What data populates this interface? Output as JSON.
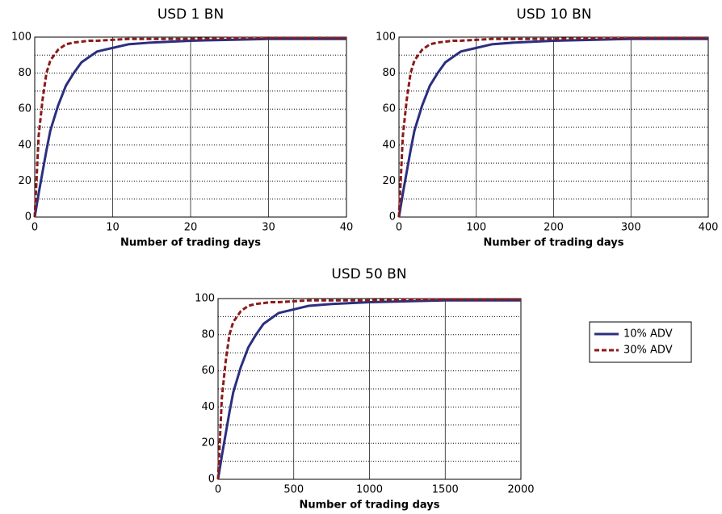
{
  "chart_data": [
    {
      "type": "line",
      "title": "USD 1 BN",
      "x_label": "Number of trading days",
      "x": [
        0,
        0.5,
        1,
        1.5,
        2,
        3,
        4,
        5,
        6,
        7,
        8,
        10,
        12,
        15,
        20,
        25,
        30,
        40
      ],
      "series": [
        {
          "name": "10% ADV",
          "color": "#2b2f7e",
          "values": [
            0,
            13,
            25,
            37,
            48,
            62,
            73,
            80,
            86,
            89,
            92,
            94,
            96,
            97,
            98,
            98.5,
            99,
            99
          ]
        },
        {
          "name": "30% ADV",
          "color": "#8b1a1a",
          "dashed": true,
          "values": [
            0,
            45,
            65,
            80,
            87,
            93,
            96,
            97,
            97.5,
            98,
            98,
            98.5,
            99,
            99,
            99,
            99.5,
            99.5,
            99.5
          ]
        }
      ],
      "xlim": [
        0,
        40
      ],
      "xticks": [
        0,
        10,
        20,
        30,
        40
      ],
      "ylim": [
        0,
        100
      ],
      "yticks": [
        0,
        20,
        40,
        60,
        80,
        100
      ],
      "yminor": [
        10,
        30,
        50,
        70,
        90
      ],
      "grid": true
    },
    {
      "type": "line",
      "title": "USD 10 BN",
      "x_label": "Number of trading days",
      "x": [
        0,
        5,
        10,
        15,
        20,
        30,
        40,
        50,
        60,
        70,
        80,
        100,
        120,
        150,
        200,
        250,
        300,
        400
      ],
      "series": [
        {
          "name": "10% ADV",
          "color": "#2b2f7e",
          "values": [
            0,
            13,
            25,
            37,
            48,
            62,
            73,
            80,
            86,
            89,
            92,
            94,
            96,
            97,
            98,
            98.5,
            99,
            99
          ]
        },
        {
          "name": "30% ADV",
          "color": "#8b1a1a",
          "dashed": true,
          "values": [
            0,
            45,
            65,
            80,
            87,
            93,
            96,
            97,
            97.5,
            98,
            98,
            98.5,
            99,
            99,
            99,
            99.5,
            99.5,
            99.5
          ]
        }
      ],
      "xlim": [
        0,
        400
      ],
      "xticks": [
        0,
        100,
        200,
        300,
        400
      ],
      "ylim": [
        0,
        100
      ],
      "yticks": [
        0,
        20,
        40,
        60,
        80,
        100
      ],
      "yminor": [
        10,
        30,
        50,
        70,
        90
      ],
      "grid": true
    },
    {
      "type": "line",
      "title": "USD 50 BN",
      "x_label": "Number of trading days",
      "x": [
        0,
        25,
        50,
        75,
        100,
        150,
        200,
        250,
        300,
        350,
        400,
        500,
        600,
        750,
        1000,
        1250,
        1500,
        2000
      ],
      "series": [
        {
          "name": "10% ADV",
          "color": "#2b2f7e",
          "values": [
            0,
            13,
            25,
            37,
            48,
            62,
            73,
            80,
            86,
            89,
            92,
            94,
            96,
            97,
            98,
            98.5,
            99,
            99
          ]
        },
        {
          "name": "30% ADV",
          "color": "#8b1a1a",
          "dashed": true,
          "values": [
            0,
            45,
            65,
            80,
            87,
            93,
            96,
            97,
            97.5,
            98,
            98,
            98.5,
            99,
            99,
            99,
            99.5,
            99.5,
            99.5
          ]
        }
      ],
      "xlim": [
        0,
        2000
      ],
      "xticks": [
        0,
        500,
        1000,
        1500,
        2000
      ],
      "ylim": [
        0,
        100
      ],
      "yticks": [
        0,
        20,
        40,
        60,
        80,
        100
      ],
      "yminor": [
        10,
        30,
        50,
        70,
        90
      ],
      "grid": true
    }
  ]
}
